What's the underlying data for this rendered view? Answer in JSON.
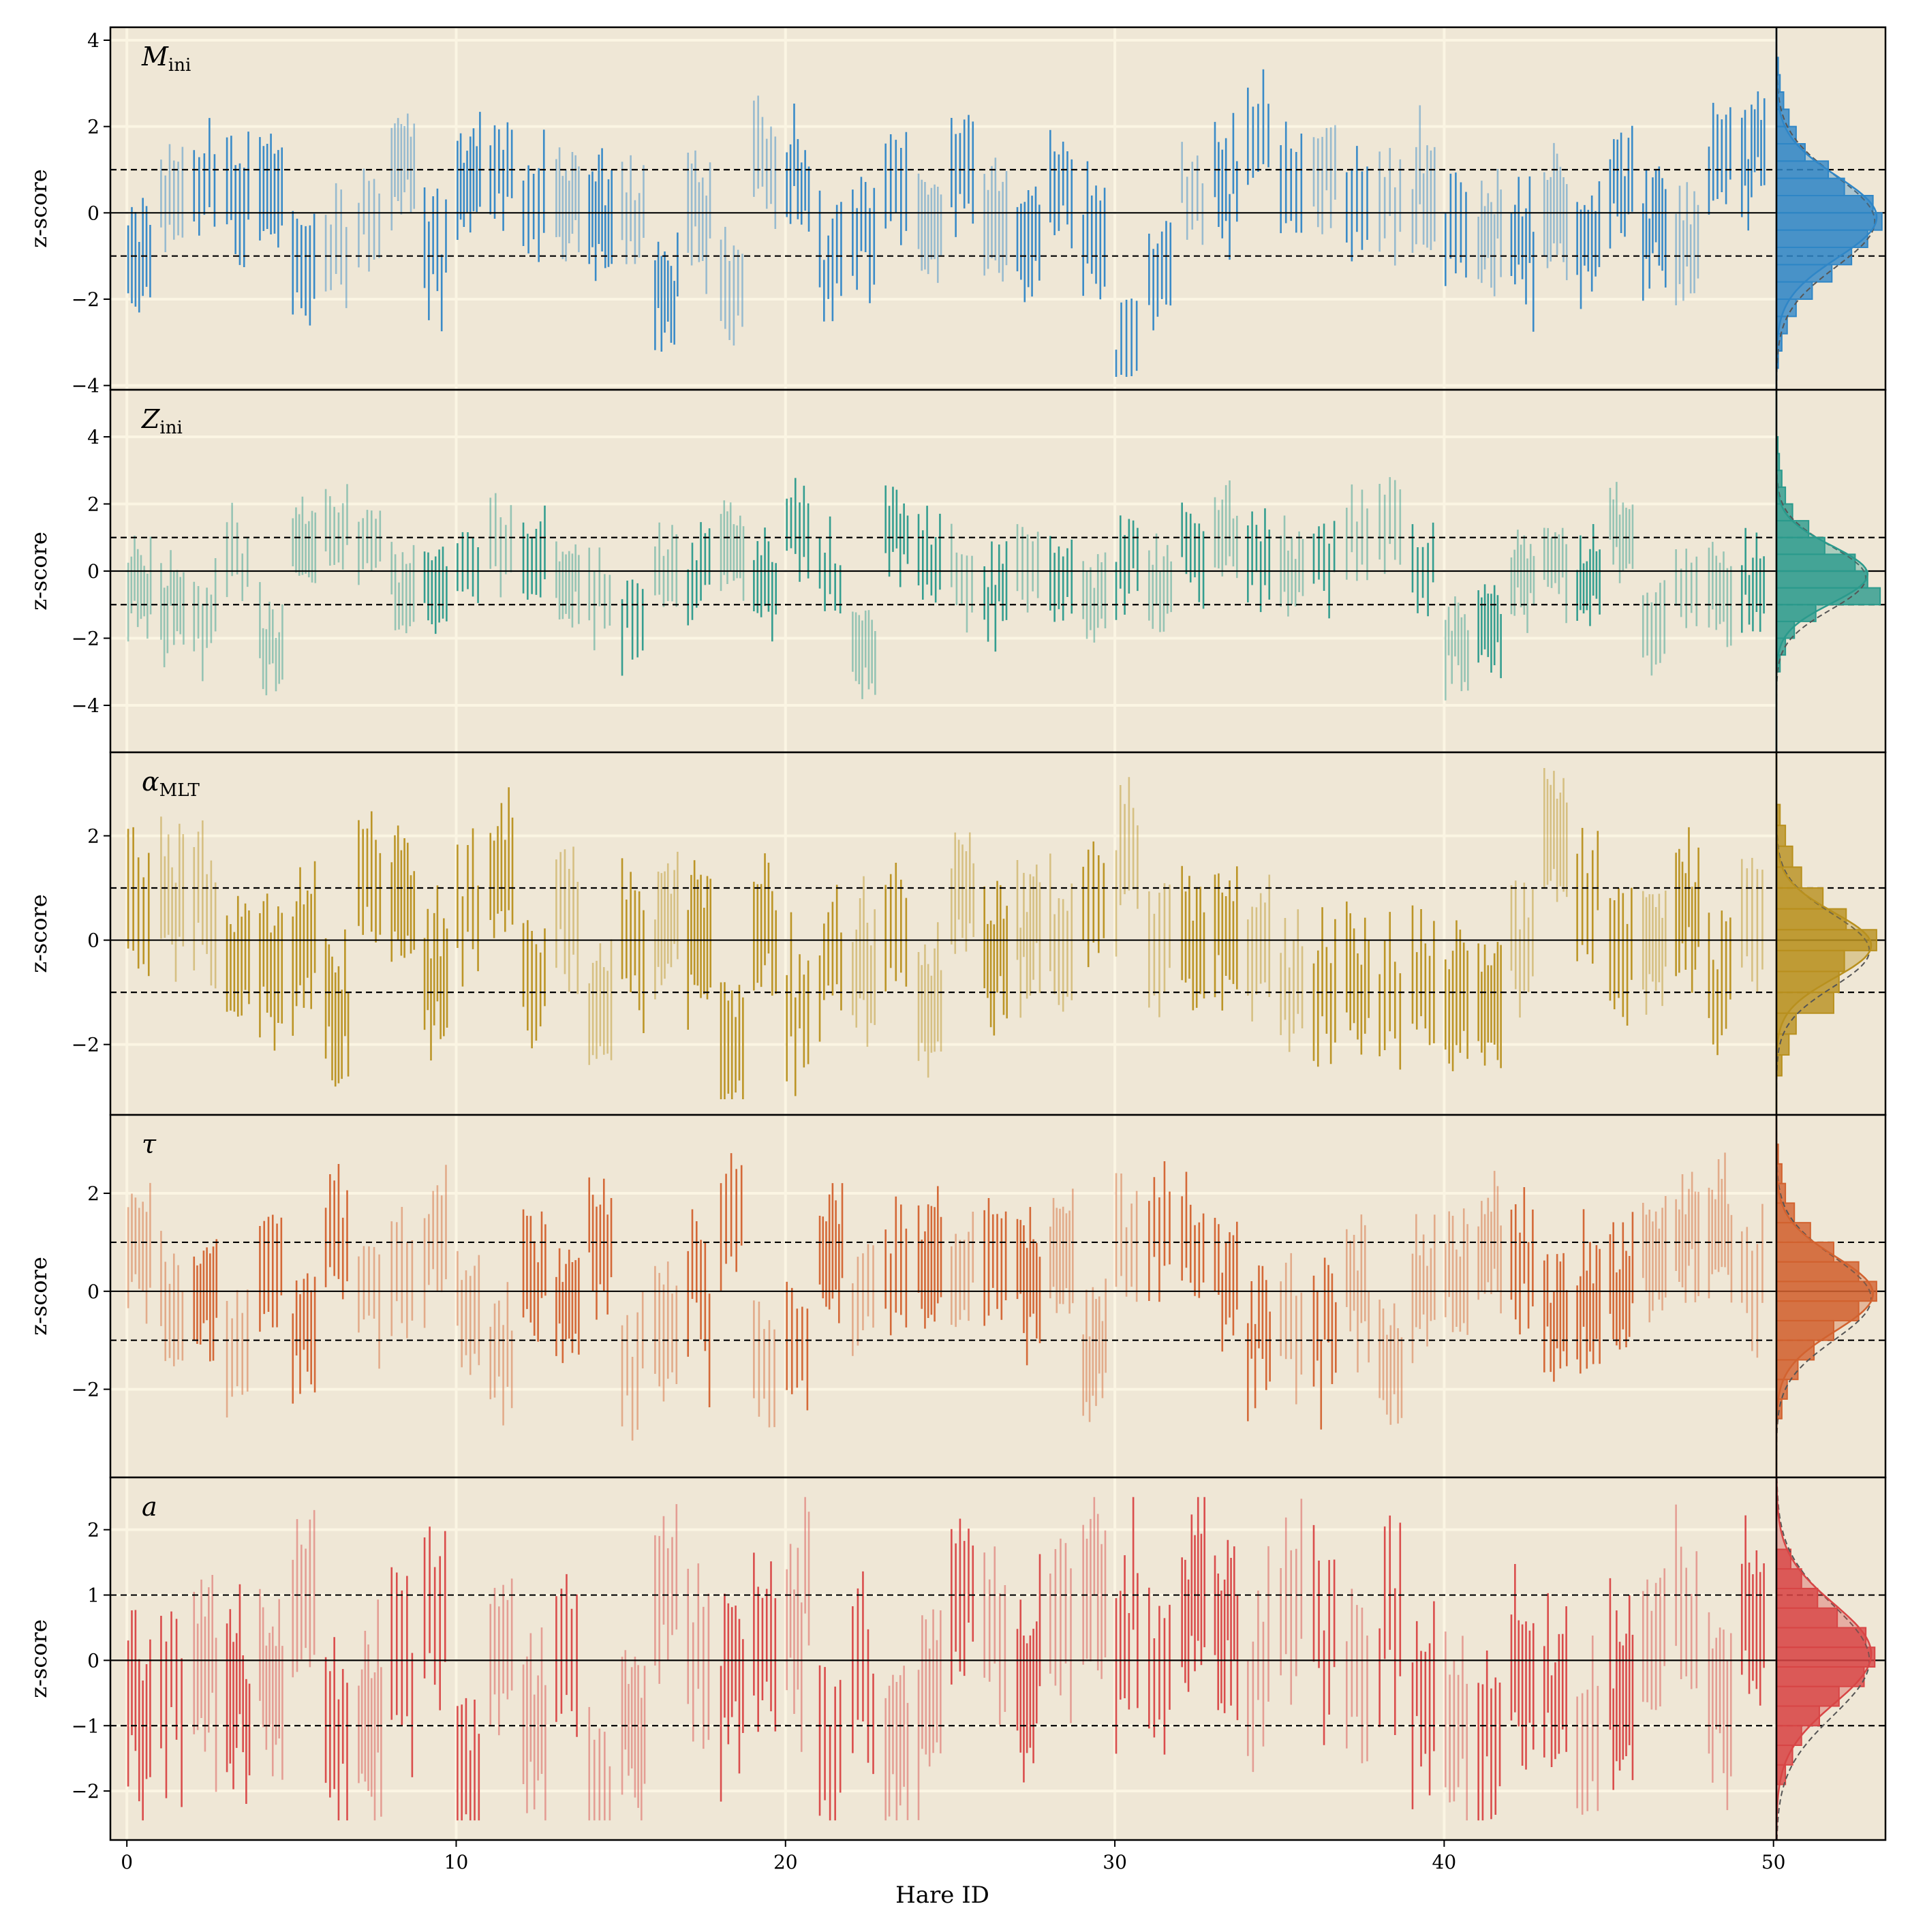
{
  "chart_data": {
    "type": "errorbar",
    "xlabel": "Hare ID",
    "ylabel": "z-score",
    "x_ticks": [
      "0",
      "10",
      "20",
      "30",
      "40",
      "50"
    ],
    "xlim": [
      -0.5,
      53.4
    ],
    "hist_xstart": 50,
    "grid": true,
    "reference_lines": {
      "solid": [
        0
      ],
      "dashed": [
        -1,
        1
      ]
    },
    "colors": {
      "background": "#efe7d6",
      "grid": "#fbf5e3"
    },
    "panels": [
      {
        "name": "M",
        "subscript": "ini",
        "color": "#2f86c7",
        "ylim": [
          -4.1,
          4.3
        ],
        "yticks": [
          -4,
          -2,
          0,
          2,
          4
        ],
        "ytick_labels": [
          "−4",
          "−2",
          "0",
          "2",
          "4"
        ],
        "hist_bins": [
          [
            -3.6,
            -3.2,
            0.05
          ],
          [
            -3.2,
            -2.8,
            0.15
          ],
          [
            -2.8,
            -2.4,
            0.3
          ],
          [
            -2.4,
            -2.0,
            0.55
          ],
          [
            -2.0,
            -1.6,
            1.0
          ],
          [
            -1.6,
            -1.2,
            1.55
          ],
          [
            -1.2,
            -0.8,
            2.1
          ],
          [
            -0.8,
            -0.4,
            2.55
          ],
          [
            -0.4,
            0.0,
            2.95
          ],
          [
            0.0,
            0.4,
            2.7
          ],
          [
            0.4,
            0.8,
            1.9
          ],
          [
            0.8,
            1.2,
            1.45
          ],
          [
            1.2,
            1.6,
            0.8
          ],
          [
            1.6,
            2.0,
            0.55
          ],
          [
            2.0,
            2.4,
            0.35
          ],
          [
            2.4,
            2.8,
            0.2
          ],
          [
            2.8,
            3.2,
            0.1
          ],
          [
            3.2,
            3.6,
            0.05
          ]
        ],
        "pdf": {
          "mu": -0.2,
          "sigma": 1.05,
          "peak": 2.75
        }
      },
      {
        "name": "Z",
        "subscript": "ini",
        "color": "#2a9a8c",
        "ylim": [
          -5.4,
          5.4
        ],
        "yticks": [
          -4,
          -2,
          0,
          2,
          4
        ],
        "ytick_labels": [
          "−4",
          "−2",
          "0",
          "2",
          "4"
        ],
        "hist_bins": [
          [
            -3.0,
            -2.5,
            0.1
          ],
          [
            -2.5,
            -2.0,
            0.25
          ],
          [
            -2.0,
            -1.5,
            0.5
          ],
          [
            -1.5,
            -1.0,
            1.1
          ],
          [
            -1.0,
            -0.5,
            2.9
          ],
          [
            -0.5,
            0.0,
            2.55
          ],
          [
            0.0,
            0.5,
            2.2
          ],
          [
            0.5,
            1.0,
            1.35
          ],
          [
            1.0,
            1.5,
            0.9
          ],
          [
            1.5,
            2.0,
            0.45
          ],
          [
            2.0,
            2.5,
            0.25
          ],
          [
            2.5,
            3.0,
            0.15
          ],
          [
            3.0,
            3.5,
            0.08
          ],
          [
            3.5,
            4.0,
            0.04
          ]
        ],
        "pdf": {
          "mu": -0.2,
          "sigma": 0.95,
          "peak": 2.5
        }
      },
      {
        "name": "α",
        "subscript": "MLT",
        "color": "#b8901e",
        "ylim": [
          -3.35,
          3.6
        ],
        "yticks": [
          -2,
          0,
          2
        ],
        "ytick_labels": [
          "−2",
          "0",
          "2"
        ],
        "hist_bins": [
          [
            -2.6,
            -2.2,
            0.15
          ],
          [
            -2.2,
            -1.8,
            0.35
          ],
          [
            -1.8,
            -1.4,
            0.55
          ],
          [
            -1.4,
            -1.0,
            1.6
          ],
          [
            -1.0,
            -0.6,
            1.75
          ],
          [
            -0.6,
            -0.2,
            1.9
          ],
          [
            -0.2,
            0.2,
            2.8
          ],
          [
            0.2,
            0.6,
            1.95
          ],
          [
            0.6,
            1.0,
            1.3
          ],
          [
            1.0,
            1.4,
            0.7
          ],
          [
            1.4,
            1.8,
            0.45
          ],
          [
            1.8,
            2.2,
            0.25
          ],
          [
            2.2,
            2.6,
            0.1
          ]
        ],
        "pdf": {
          "mu": -0.2,
          "sigma": 0.7,
          "peak": 2.6
        }
      },
      {
        "name": "τ",
        "subscript": "",
        "color": "#d2622f",
        "ylim": [
          -3.8,
          3.6
        ],
        "yticks": [
          -2,
          0,
          2
        ],
        "ytick_labels": [
          "−2",
          "0",
          "2"
        ],
        "hist_bins": [
          [
            -2.6,
            -2.2,
            0.15
          ],
          [
            -2.2,
            -1.8,
            0.3
          ],
          [
            -1.8,
            -1.4,
            0.6
          ],
          [
            -1.4,
            -1.0,
            1.05
          ],
          [
            -1.0,
            -0.6,
            1.6
          ],
          [
            -0.6,
            -0.2,
            2.3
          ],
          [
            -0.2,
            0.2,
            2.8
          ],
          [
            0.2,
            0.6,
            2.3
          ],
          [
            0.6,
            1.0,
            1.6
          ],
          [
            1.0,
            1.4,
            0.95
          ],
          [
            1.4,
            1.8,
            0.5
          ],
          [
            1.8,
            2.2,
            0.25
          ],
          [
            2.2,
            2.6,
            0.15
          ],
          [
            2.6,
            3.0,
            0.05
          ]
        ],
        "pdf": {
          "mu": -0.15,
          "sigma": 0.85,
          "peak": 2.65
        }
      },
      {
        "name": "a",
        "subscript": "",
        "color": "#d84545",
        "ylim": [
          -2.75,
          2.8
        ],
        "yticks": [
          -2,
          -1,
          0,
          1,
          2
        ],
        "ytick_labels": [
          "−2",
          "−1",
          "0",
          "1",
          "2"
        ],
        "hist_bins": [
          [
            -1.9,
            -1.6,
            0.25
          ],
          [
            -1.6,
            -1.3,
            0.45
          ],
          [
            -1.3,
            -1.0,
            0.7
          ],
          [
            -1.0,
            -0.7,
            1.2
          ],
          [
            -0.7,
            -0.4,
            1.75
          ],
          [
            -0.4,
            -0.1,
            2.45
          ],
          [
            -0.1,
            0.2,
            2.75
          ],
          [
            0.2,
            0.5,
            2.5
          ],
          [
            0.5,
            0.8,
            1.7
          ],
          [
            0.8,
            1.1,
            1.15
          ],
          [
            1.1,
            1.4,
            0.7
          ],
          [
            1.4,
            1.7,
            0.4
          ]
        ],
        "pdf": {
          "mu": 0.0,
          "sigma": 0.85,
          "peak": 2.6
        }
      }
    ]
  }
}
